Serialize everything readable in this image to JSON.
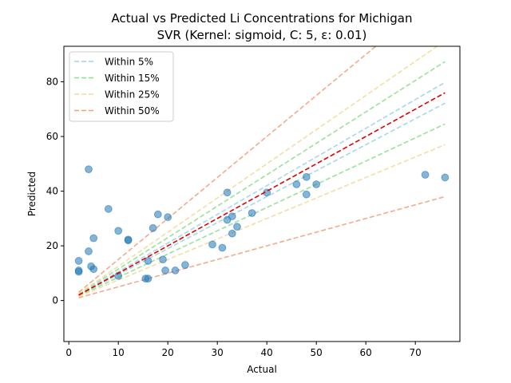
{
  "chart_data": {
    "type": "scatter",
    "title_line1": "Actual vs Predicted Li Concentrations for Michigan",
    "title_line2": "SVR (Kernel: sigmoid, C: 5, ε: 0.01)",
    "xlabel": "Actual",
    "ylabel": "Predicted",
    "xlim": [
      -1,
      79
    ],
    "ylim": [
      -15,
      93
    ],
    "xticks": [
      0,
      10,
      20,
      30,
      40,
      50,
      60,
      70
    ],
    "yticks": [
      0,
      20,
      40,
      60,
      80
    ],
    "grid": false,
    "legend_position": "top-left",
    "ideal_line": {
      "color": "#e00000",
      "x_range": [
        2,
        76
      ]
    },
    "bands": [
      {
        "label": "Within 5%",
        "fraction": 0.05,
        "color": "#9ed3e3"
      },
      {
        "label": "Within 15%",
        "fraction": 0.15,
        "color": "#8fdf8f"
      },
      {
        "label": "Within 25%",
        "fraction": 0.25,
        "color": "#f0dc9a"
      },
      {
        "label": "Within 50%",
        "fraction": 0.5,
        "color": "#f3a17f"
      }
    ],
    "band_x_range": [
      2,
      76
    ],
    "point_color": "#1f77b4",
    "points": [
      {
        "x": 2,
        "y": 10.5
      },
      {
        "x": 2,
        "y": 11
      },
      {
        "x": 2,
        "y": 14.5
      },
      {
        "x": 4,
        "y": 18
      },
      {
        "x": 4,
        "y": 48
      },
      {
        "x": 4.5,
        "y": 12.5
      },
      {
        "x": 5,
        "y": 22.8
      },
      {
        "x": 5,
        "y": 11.5
      },
      {
        "x": 8,
        "y": 33.5
      },
      {
        "x": 10,
        "y": 25.5
      },
      {
        "x": 10,
        "y": 9
      },
      {
        "x": 12,
        "y": 22
      },
      {
        "x": 12,
        "y": 22.3
      },
      {
        "x": 15.5,
        "y": 8
      },
      {
        "x": 16,
        "y": 8
      },
      {
        "x": 16,
        "y": 14.5
      },
      {
        "x": 17,
        "y": 26.5
      },
      {
        "x": 18,
        "y": 31.5
      },
      {
        "x": 19,
        "y": 15
      },
      {
        "x": 19.5,
        "y": 11
      },
      {
        "x": 20,
        "y": 30.5
      },
      {
        "x": 21.5,
        "y": 11
      },
      {
        "x": 23.5,
        "y": 13
      },
      {
        "x": 29,
        "y": 20.5
      },
      {
        "x": 31,
        "y": 19.3
      },
      {
        "x": 32,
        "y": 39.5
      },
      {
        "x": 32,
        "y": 29.5
      },
      {
        "x": 33,
        "y": 30.8
      },
      {
        "x": 33,
        "y": 24.5
      },
      {
        "x": 34,
        "y": 27
      },
      {
        "x": 37,
        "y": 32
      },
      {
        "x": 40,
        "y": 39.5
      },
      {
        "x": 46,
        "y": 42.5
      },
      {
        "x": 48,
        "y": 45.2
      },
      {
        "x": 48,
        "y": 38.8
      },
      {
        "x": 50,
        "y": 42.5
      },
      {
        "x": 72,
        "y": 46
      },
      {
        "x": 76,
        "y": 45
      }
    ]
  }
}
